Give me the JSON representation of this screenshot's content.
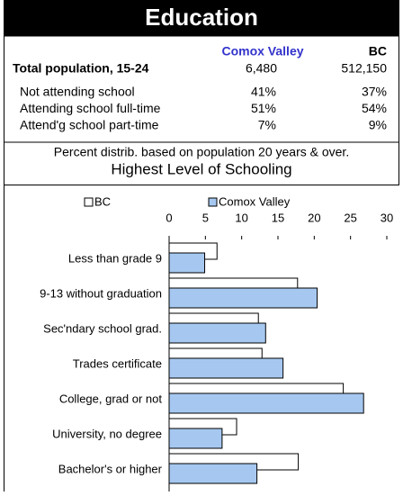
{
  "header": {
    "title": "Education"
  },
  "table": {
    "columns": [
      "Comox Valley",
      "BC"
    ],
    "total": {
      "label": "Total population, 15-24",
      "values": [
        "6,480",
        "512,150"
      ]
    },
    "rows": [
      {
        "label": "Not attending school",
        "values": [
          "41%",
          "37%"
        ]
      },
      {
        "label": "Attending school full-time",
        "values": [
          "51%",
          "54%"
        ]
      },
      {
        "label": "Attend'g school part-time",
        "values": [
          "7%",
          "9%"
        ]
      }
    ]
  },
  "note": "Percent distrib. based on population 20 years & over.",
  "chart_data": {
    "type": "hbar",
    "title": "Highest Level of Schooling",
    "categories": [
      "Less than grade 9",
      "9-13 without graduation",
      "Sec'ndary school grad.",
      "Trades certificate",
      "College, grad or not",
      "University, no degree",
      "Bachelor's or higher"
    ],
    "series": [
      {
        "name": "BC",
        "color": "#ffffff",
        "values": [
          6.6,
          17.7,
          12.3,
          12.8,
          24,
          9.3,
          17.8
        ]
      },
      {
        "name": "Comox Valley",
        "color": "#a6c8f0",
        "values": [
          4.9,
          20.4,
          13.3,
          15.7,
          26.8,
          7.3,
          12.1
        ]
      }
    ],
    "xlim": [
      0,
      30
    ],
    "xticks": [
      0,
      5,
      10,
      15,
      20,
      25,
      30
    ]
  }
}
